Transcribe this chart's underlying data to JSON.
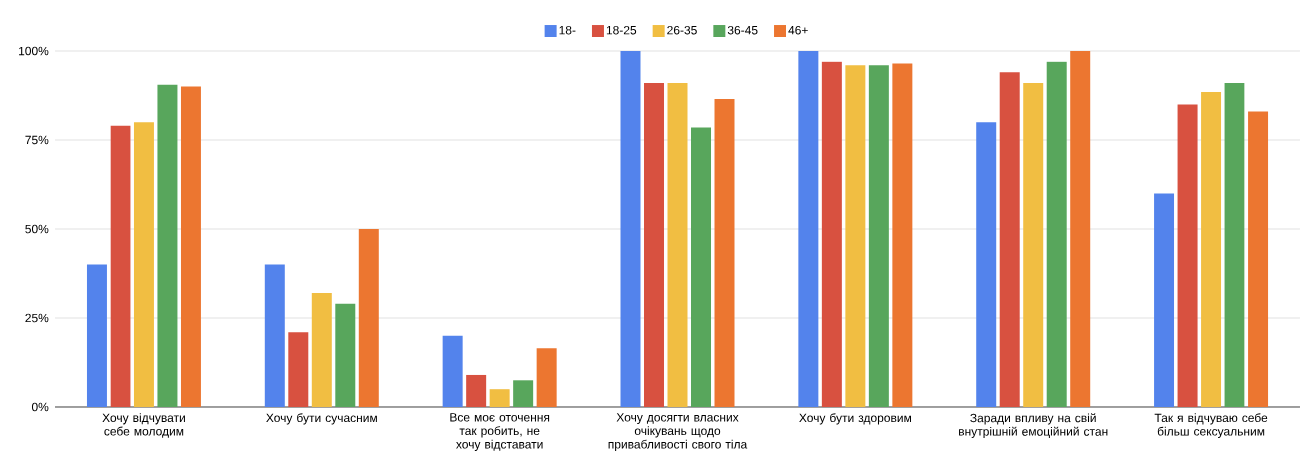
{
  "chart_data": {
    "type": "bar",
    "categories": [
      "Хочу відчувати себе молодим",
      "Хочу бути сучасним",
      "Все моє оточення так робить, не хочу відставати",
      "Хочу досягти власних очікувань щодо привабливості свого тіла",
      "Хочу бути здоровим",
      "Заради впливу на свій внутрішній емоційний стан",
      "Так я відчуваю себе більш сексуальним"
    ],
    "series": [
      {
        "name": "18-",
        "color": "#5383ec",
        "values": [
          40,
          40,
          20,
          100,
          100,
          80,
          60
        ]
      },
      {
        "name": "18-25",
        "color": "#d85140",
        "values": [
          79,
          21,
          9,
          91,
          97,
          94,
          85
        ]
      },
      {
        "name": "26-35",
        "color": "#f1be42",
        "values": [
          80,
          32,
          5,
          91,
          96,
          91,
          88.5
        ]
      },
      {
        "name": "36-45",
        "color": "#58a65c",
        "values": [
          90.5,
          29,
          7.5,
          78.5,
          96,
          97,
          91
        ]
      },
      {
        "name": "46+",
        "color": "#ec7630",
        "values": [
          90,
          50,
          16.5,
          86.5,
          96.5,
          100,
          83
        ]
      }
    ],
    "ylim": [
      0,
      100
    ],
    "yticks": [
      {
        "value": 0,
        "label": "0%"
      },
      {
        "value": 25,
        "label": "25%"
      },
      {
        "value": 50,
        "label": "50%"
      },
      {
        "value": 75,
        "label": "75%"
      },
      {
        "value": 100,
        "label": "100%"
      }
    ],
    "grid": "y",
    "legend": "top"
  }
}
